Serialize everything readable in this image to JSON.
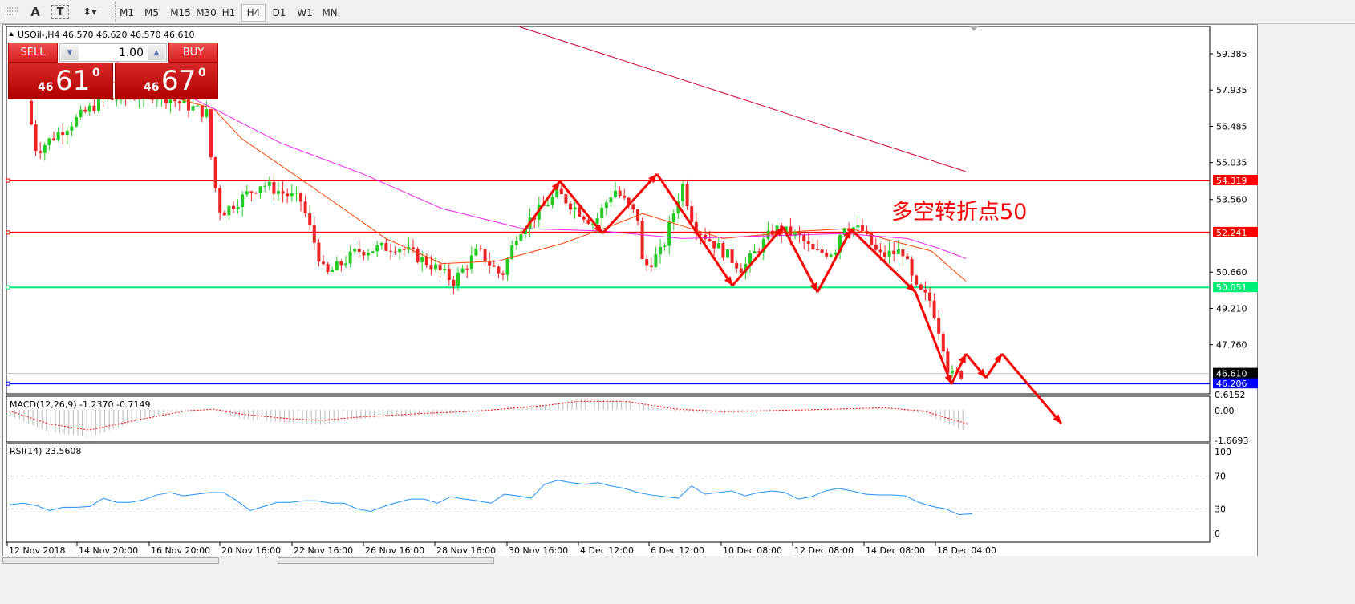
{
  "toolbar": {
    "icons": [
      "grid-lines-icon",
      "text-icon",
      "text-label-icon",
      "arrows-icon"
    ],
    "text_icon_glyph": "A",
    "label_icon_glyph": "T",
    "timeframes": [
      "M1",
      "M5",
      "M15",
      "M30",
      "H1",
      "H4",
      "D1",
      "W1",
      "MN"
    ],
    "selected_timeframe": "H4"
  },
  "chart": {
    "header": "USOil-,H4  46.570 46.620 46.570 46.610",
    "annotation": "多空转折点50"
  },
  "trade_panel": {
    "sell_label": "SELL",
    "buy_label": "BUY",
    "lot": "1.00",
    "sell_big": "46",
    "sell_digits": "61",
    "sell_sup": "0",
    "buy_big": "46",
    "buy_digits": "67",
    "buy_sup": "0"
  },
  "price_axis": {
    "ticks": [
      "59.385",
      "57.935",
      "56.485",
      "55.035",
      "53.560",
      "50.660",
      "49.210",
      "47.760"
    ],
    "levels": [
      {
        "value": "54.319",
        "color": "#ff0000"
      },
      {
        "value": "52.241",
        "color": "#ff0000"
      },
      {
        "value": "50.051",
        "color": "#00ee77"
      },
      {
        "value": "46.206",
        "color": "#0000ff"
      }
    ],
    "current": "46.610"
  },
  "macd": {
    "label": "MACD(12,26,9) -1.2370 -0.7149",
    "ticks": [
      "0.6152",
      "0.00",
      "-1.6693"
    ]
  },
  "rsi": {
    "label": "RSI(14) 23.5608",
    "ticks": [
      "100",
      "70",
      "30",
      "0"
    ],
    "values": [
      35,
      37,
      34,
      28,
      32,
      32,
      33,
      43,
      38,
      38,
      41,
      47,
      50,
      46,
      48,
      50,
      50,
      40,
      28,
      33,
      38,
      38,
      40,
      40,
      37,
      37,
      30,
      27,
      33,
      38,
      42,
      42,
      37,
      45,
      42,
      40,
      37,
      48,
      46,
      43,
      60,
      65,
      62,
      60,
      62,
      58,
      55,
      50,
      47,
      45,
      43,
      58,
      48,
      50,
      52,
      46,
      50,
      52,
      50,
      42,
      45,
      52,
      55,
      52,
      48,
      47,
      47,
      46,
      38,
      33,
      30,
      23,
      24
    ]
  },
  "time_axis": [
    "12 Nov 2018",
    "14 Nov 20:00",
    "16 Nov 20:00",
    "20 Nov 16:00",
    "22 Nov 16:00",
    "26 Nov 16:00",
    "28 Nov 16:00",
    "30 Nov 16:00",
    "4 Dec 12:00",
    "6 Dec 12:00",
    "10 Dec 08:00",
    "12 Dec 08:00",
    "14 Dec 08:00",
    "18 Dec 04:00"
  ],
  "colors": {
    "bull": "#22cc22",
    "bear": "#ee2222",
    "ma_fast": "#ff4400",
    "ma_slow": "#ee22ee",
    "ma_long": "#cc0033",
    "rsi": "#1e90ff",
    "arrows": "#ff0000"
  }
}
